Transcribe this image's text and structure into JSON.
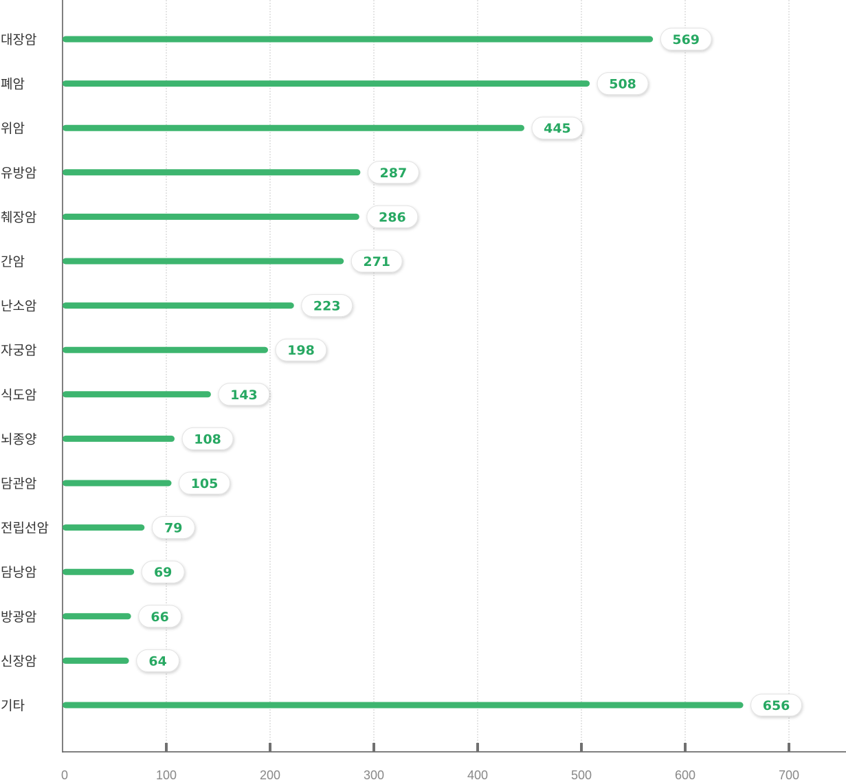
{
  "chart_data": {
    "type": "bar",
    "orientation": "horizontal",
    "categories": [
      "대장암",
      "폐암",
      "위암",
      "유방암",
      "췌장암",
      "간암",
      "난소암",
      "자궁암",
      "식도암",
      "뇌종양",
      "담관암",
      "전립선암",
      "담낭암",
      "방광암",
      "신장암",
      "기타"
    ],
    "values": [
      569,
      508,
      445,
      287,
      286,
      271,
      223,
      198,
      143,
      108,
      105,
      79,
      69,
      66,
      64,
      656
    ],
    "value_labels": [
      "569",
      "508",
      "445",
      "287",
      "286",
      "271",
      "223",
      "198",
      "143",
      "108",
      "105",
      "79",
      "69",
      "66",
      "64",
      "656"
    ],
    "x_ticks": [
      0,
      100,
      200,
      300,
      400,
      500,
      600,
      700
    ],
    "x_tick_labels": [
      "0",
      "100",
      "200",
      "300",
      "400",
      "500",
      "600",
      "700"
    ],
    "xlim": [
      0,
      760
    ],
    "title": "",
    "xlabel": "",
    "ylabel": "",
    "grid": "vertical dotted",
    "legend": "none",
    "colors": {
      "bar": "#3db56f",
      "value_text": "#27a862",
      "axis": "#555555",
      "grid": "#c8c8c8",
      "tick_text": "#888888"
    }
  }
}
